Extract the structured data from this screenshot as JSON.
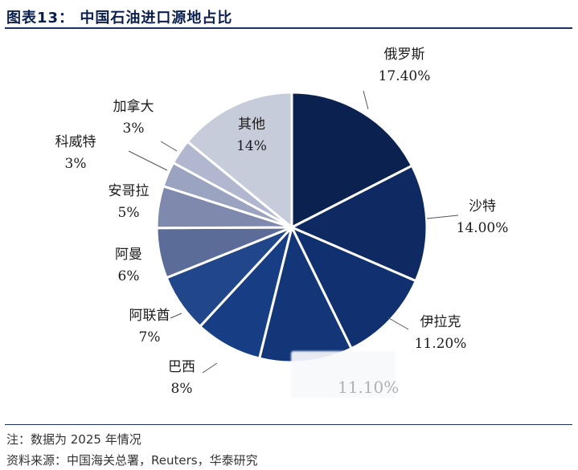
{
  "header": {
    "title": "图表13： 中国石油进口源地占比"
  },
  "chart_data": {
    "type": "pie",
    "title": "中国石油进口源地占比",
    "slices": [
      {
        "name": "俄罗斯",
        "value": 17.4,
        "label": "17.40%",
        "color": "#0b2150"
      },
      {
        "name": "沙特",
        "value": 14.0,
        "label": "14.00%",
        "color": "#0f2a62"
      },
      {
        "name": "伊拉克",
        "value": 11.2,
        "label": "11.20%",
        "color": "#113070"
      },
      {
        "name": "",
        "value": 11.1,
        "label": "",
        "color": "#133679"
      },
      {
        "name": "巴西",
        "value": 8,
        "label": "8%",
        "color": "#173d85"
      },
      {
        "name": "阿联酋",
        "value": 7,
        "label": "7%",
        "color": "#21468a"
      },
      {
        "name": "阿曼",
        "value": 6,
        "label": "6%",
        "color": "#5c6c99"
      },
      {
        "name": "安哥拉",
        "value": 5,
        "label": "5%",
        "color": "#7e89ad"
      },
      {
        "name": "科威特",
        "value": 3,
        "label": "3%",
        "color": "#9aa3c0"
      },
      {
        "name": "加拿大",
        "value": 3,
        "label": "3%",
        "color": "#b0b7ce"
      },
      {
        "name": "其他",
        "value": 14,
        "label": "14%",
        "color": "#c7ccdb"
      }
    ]
  },
  "obscured_label": "11.10%",
  "footer": {
    "note": "注：数据为 2025 年情况",
    "source": "资料来源：中国海关总署，Reuters，华泰研究"
  }
}
